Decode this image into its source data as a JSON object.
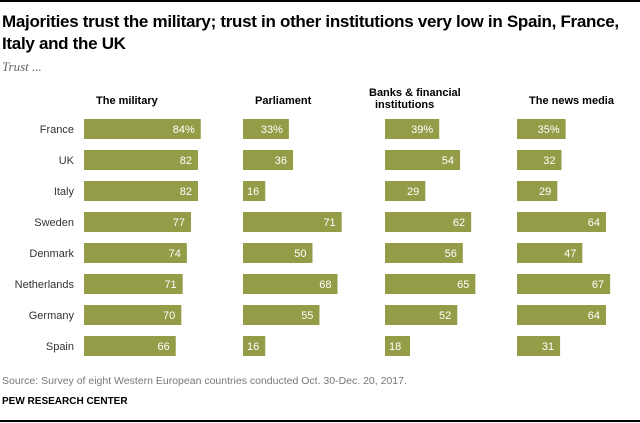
{
  "chart_data": {
    "type": "bar",
    "title": "Majorities trust the military; trust in other institutions very low in Spain, France, Italy and the UK",
    "subtitle": "Trust ...",
    "categories": [
      "France",
      "UK",
      "Italy",
      "Sweden",
      "Denmark",
      "Netherlands",
      "Germany",
      "Spain"
    ],
    "series": [
      {
        "name": "The military",
        "label_lines": [
          "The military"
        ],
        "values": [
          84,
          82,
          82,
          77,
          74,
          71,
          70,
          66
        ]
      },
      {
        "name": "Parliament",
        "label_lines": [
          "Parliament"
        ],
        "values": [
          33,
          36,
          16,
          71,
          50,
          68,
          55,
          16
        ]
      },
      {
        "name": "Banks & financial institutions",
        "label_lines": [
          "Banks & financial",
          "institutions"
        ],
        "values": [
          39,
          54,
          29,
          62,
          56,
          65,
          52,
          18
        ]
      },
      {
        "name": "The news media",
        "label_lines": [
          "The news media"
        ],
        "values": [
          35,
          32,
          29,
          64,
          47,
          67,
          64,
          31
        ]
      }
    ],
    "unit_suffix_first_row": "%",
    "xlabel": "",
    "ylabel": "",
    "xlim": [
      0,
      100
    ],
    "grid": false,
    "legend": "none",
    "bar_color": "#949c48"
  },
  "footer": {
    "source": "Source: Survey of eight Western European countries conducted Oct. 30-Dec. 20, 2017.",
    "brand": "PEW RESEARCH CENTER"
  }
}
